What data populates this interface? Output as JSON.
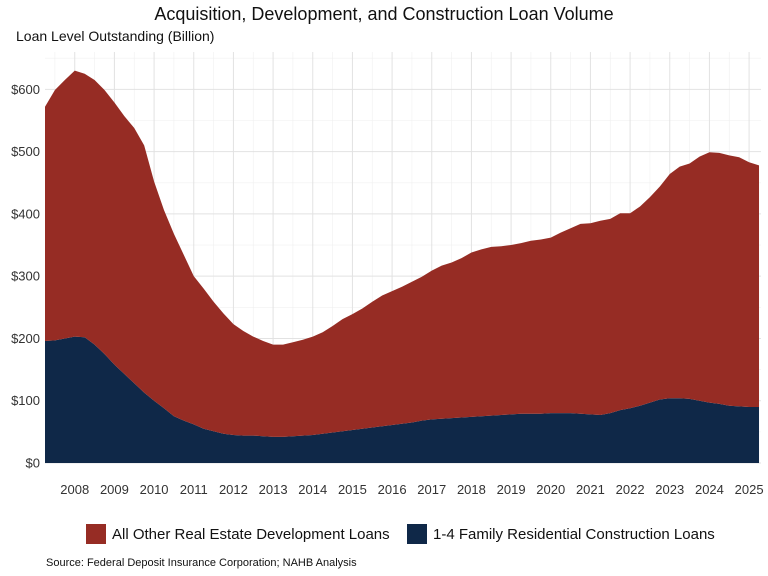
{
  "chart_data": {
    "type": "area",
    "stacked": true,
    "title": "Acquisition, Development, and Construction Loan Volume",
    "subtitle": "Loan Level Outstanding (Billion)",
    "source": "Source: Federal Deposit Insurance Corporation; NAHB Analysis",
    "x_ticks": [
      "2008",
      "2009",
      "2010",
      "2011",
      "2012",
      "2013",
      "2014",
      "2015",
      "2016",
      "2017",
      "2018",
      "2019",
      "2020",
      "2021",
      "2022",
      "2023",
      "2024",
      "2025"
    ],
    "y_ticks": [
      "$0",
      "$100",
      "$200",
      "$300",
      "$400",
      "$500",
      "$600"
    ],
    "xlim": [
      2007.25,
      2025.3
    ],
    "ylim": [
      0,
      660
    ],
    "grid": true,
    "legend_position": "bottom",
    "x": [
      2007.25,
      2007.5,
      2007.75,
      2008.0,
      2008.25,
      2008.5,
      2008.75,
      2009.0,
      2009.25,
      2009.5,
      2009.75,
      2010.0,
      2010.25,
      2010.5,
      2010.75,
      2011.0,
      2011.25,
      2011.5,
      2011.75,
      2012.0,
      2012.25,
      2012.5,
      2012.75,
      2013.0,
      2013.25,
      2013.5,
      2013.75,
      2014.0,
      2014.25,
      2014.5,
      2014.75,
      2015.0,
      2015.25,
      2015.5,
      2015.75,
      2016.0,
      2016.25,
      2016.5,
      2016.75,
      2017.0,
      2017.25,
      2017.5,
      2017.75,
      2018.0,
      2018.25,
      2018.5,
      2018.75,
      2019.0,
      2019.25,
      2019.5,
      2019.75,
      2020.0,
      2020.25,
      2020.5,
      2020.75,
      2021.0,
      2021.25,
      2021.5,
      2021.75,
      2022.0,
      2022.25,
      2022.5,
      2022.75,
      2023.0,
      2023.25,
      2023.5,
      2023.75,
      2024.0,
      2024.25,
      2024.5,
      2024.75,
      2025.0,
      2025.25
    ],
    "series": [
      {
        "name": "1-4 Family Residential Construction Loans",
        "color": "#0f2848",
        "values": [
          196,
          197,
          200,
          203,
          202,
          190,
          175,
          158,
          143,
          128,
          113,
          100,
          88,
          75,
          68,
          62,
          55,
          51,
          47,
          45,
          44,
          44,
          43,
          42,
          42,
          43,
          44,
          45,
          47,
          49,
          51,
          53,
          55,
          57,
          59,
          61,
          63,
          65,
          68,
          70,
          71,
          72,
          73,
          74,
          75,
          76,
          77,
          78,
          79,
          79,
          79,
          80,
          80,
          80,
          79,
          78,
          77,
          80,
          85,
          88,
          92,
          97,
          102,
          104,
          104,
          103,
          100,
          97,
          95,
          92,
          91,
          90,
          90
        ]
      },
      {
        "name": "All Other Real Estate Development Loans",
        "color": "#962c24",
        "values": [
          376,
          402,
          415,
          427,
          423,
          425,
          424,
          421,
          414,
          410,
          397,
          352,
          318,
          293,
          266,
          238,
          225,
          208,
          193,
          178,
          168,
          159,
          153,
          148,
          148,
          151,
          154,
          158,
          163,
          171,
          180,
          186,
          193,
          202,
          210,
          215,
          220,
          226,
          231,
          239,
          246,
          250,
          256,
          264,
          268,
          271,
          271,
          272,
          274,
          278,
          280,
          282,
          290,
          297,
          305,
          307,
          312,
          312,
          316,
          313,
          320,
          330,
          342,
          360,
          372,
          378,
          392,
          402,
          403,
          402,
          400,
          393,
          388
        ]
      }
    ]
  }
}
